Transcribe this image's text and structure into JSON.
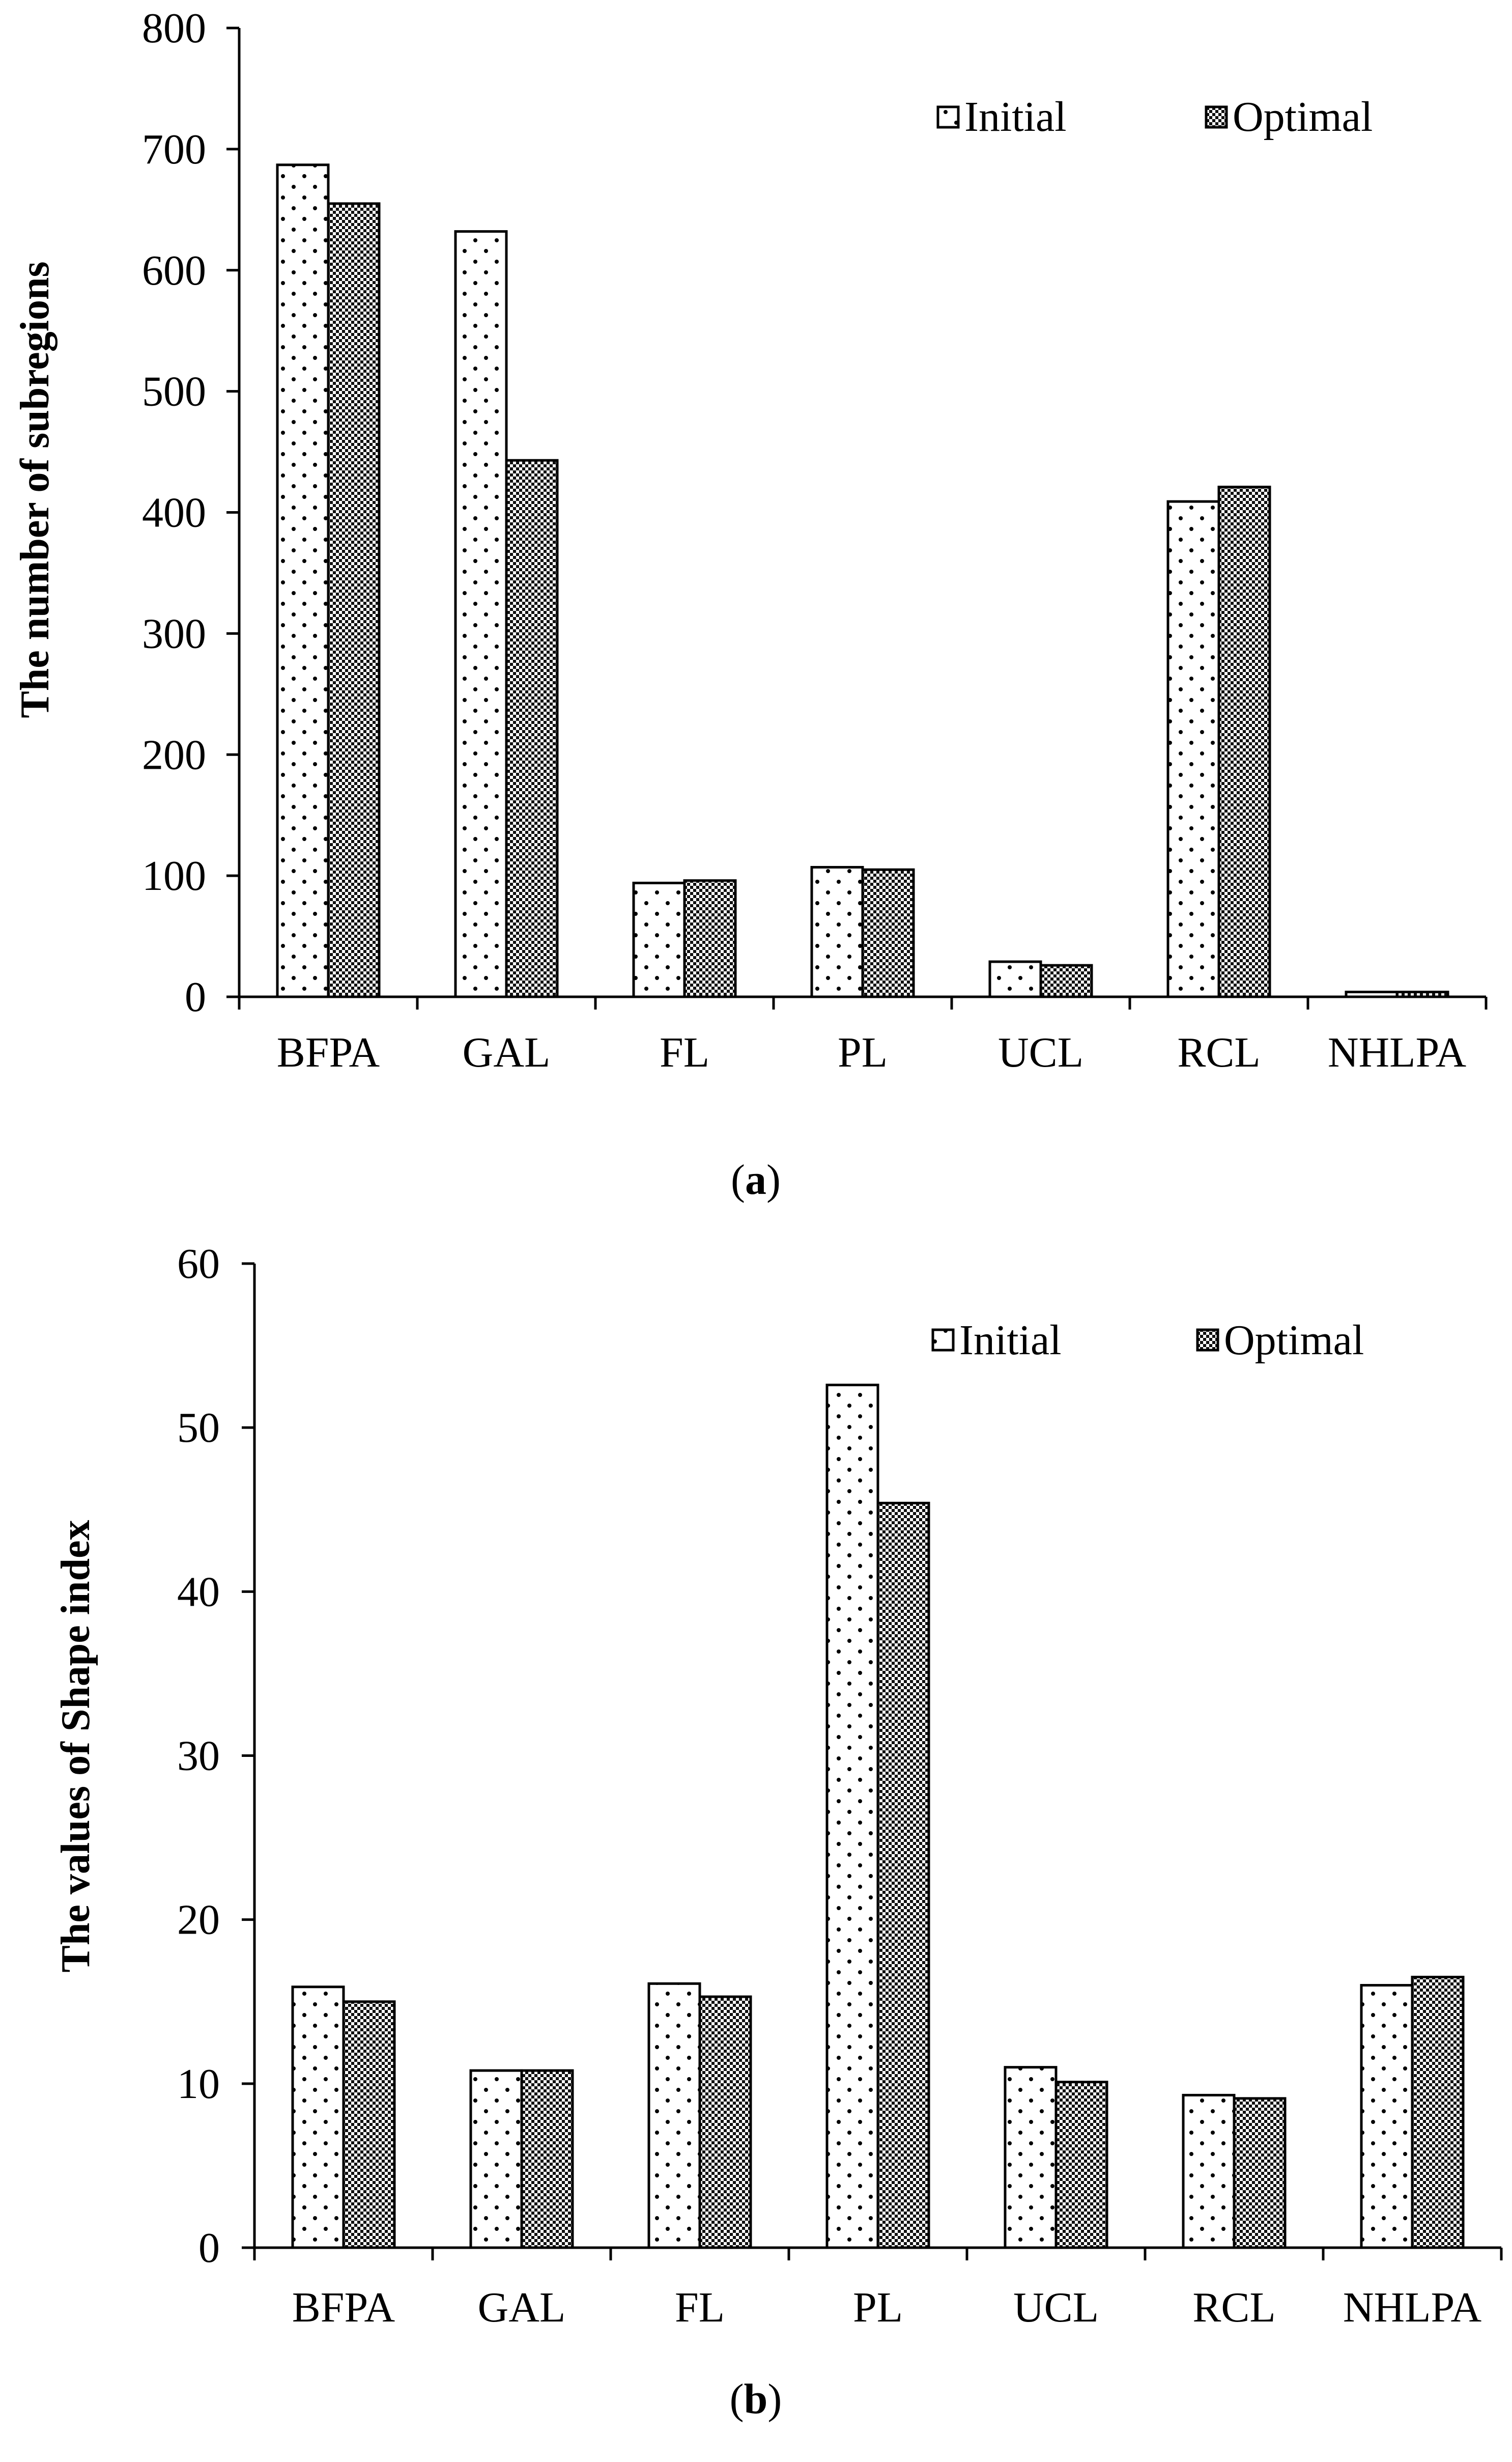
{
  "chart_data": [
    {
      "type": "bar",
      "panel_label": "a",
      "ylabel": "The number of subregions",
      "categories": [
        "BFPA",
        "GAL",
        "FL",
        "PL",
        "UCL",
        "RCL",
        "NHLPA"
      ],
      "series": [
        {
          "name": "Initial",
          "values": [
            687,
            632,
            94,
            107,
            29,
            409,
            4
          ],
          "pattern": "dots"
        },
        {
          "name": "Optimal",
          "values": [
            655,
            443,
            96,
            105,
            26,
            421,
            4
          ],
          "pattern": "checker"
        }
      ],
      "ylim": [
        0,
        800
      ],
      "yticks": [
        0,
        100,
        200,
        300,
        400,
        500,
        600,
        700,
        800
      ],
      "legend_position": "top-right",
      "grid": false
    },
    {
      "type": "bar",
      "panel_label": "b",
      "ylabel": "The values of Shape index",
      "categories": [
        "BFPA",
        "GAL",
        "FL",
        "PL",
        "UCL",
        "RCL",
        "NHLPA"
      ],
      "series": [
        {
          "name": "Initial",
          "values": [
            15.9,
            10.8,
            16.1,
            52.6,
            11.0,
            9.3,
            16.0
          ],
          "pattern": "dots"
        },
        {
          "name": "Optimal",
          "values": [
            15.0,
            10.8,
            15.3,
            45.4,
            10.1,
            9.1,
            16.5
          ],
          "pattern": "checker"
        }
      ],
      "ylim": [
        0,
        60
      ],
      "yticks": [
        0,
        10,
        20,
        30,
        40,
        50,
        60
      ],
      "legend_position": "top-right",
      "grid": false
    }
  ]
}
